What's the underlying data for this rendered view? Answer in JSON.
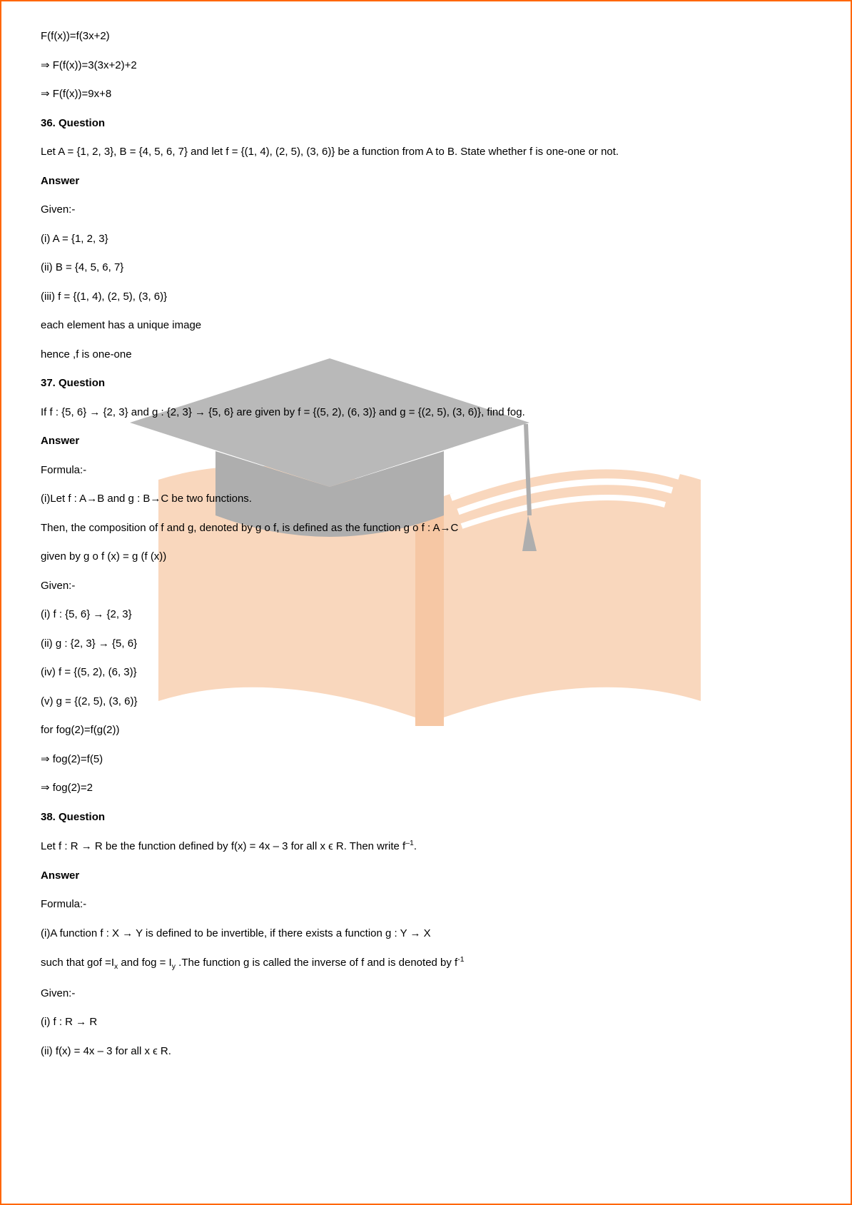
{
  "lines": [
    {
      "text": "F(f(x))=f(3x+2)",
      "bold": false
    },
    {
      "text": "⇒ F(f(x))=3(3x+2)+2",
      "bold": false
    },
    {
      "text": "⇒ F(f(x))=9x+8",
      "bold": false
    },
    {
      "text": "36. Question",
      "bold": true
    },
    {
      "text": "Let A = {1, 2, 3}, B = {4, 5, 6, 7} and let f = {(1, 4), (2, 5), (3, 6)} be a function from A to B. State whether f is one-one or not.",
      "bold": false
    },
    {
      "text": "Answer",
      "bold": true
    },
    {
      "text": "Given:-",
      "bold": false
    },
    {
      "text": "(i) A = {1, 2, 3}",
      "bold": false
    },
    {
      "text": "(ii) B = {4, 5, 6, 7}",
      "bold": false
    },
    {
      "text": "(iii) f = {(1, 4), (2, 5), (3, 6)}",
      "bold": false
    },
    {
      "text": "each element has a unique image",
      "bold": false
    },
    {
      "text": "hence ,f is one-one",
      "bold": false
    },
    {
      "text": "37. Question",
      "bold": true
    },
    {
      "text": "If f : {5, 6} → {2, 3} and g : {2, 3} → {5, 6} are given by f = {(5, 2), (6, 3)} and g = {(2, 5), (3, 6)}, find fog.",
      "bold": false
    },
    {
      "text": "Answer",
      "bold": true
    },
    {
      "text": "Formula:-",
      "bold": false
    },
    {
      "text": "(i)Let f : A→B and g : B→C be two functions.",
      "bold": false
    },
    {
      "text": "Then, the composition of f and g, denoted by g o f, is defined as the function g o f : A→C",
      "bold": false
    },
    {
      "text": "given by g o f (x) = g (f (x))",
      "bold": false
    },
    {
      "text": "Given:-",
      "bold": false
    },
    {
      "text": "(i) f : {5, 6} → {2, 3}",
      "bold": false
    },
    {
      "text": "(ii) g : {2, 3} → {5, 6}",
      "bold": false
    },
    {
      "text": "(iv) f = {(5, 2), (6, 3)}",
      "bold": false
    },
    {
      "text": "(v) g = {(2, 5), (3, 6)}",
      "bold": false
    },
    {
      "text": "for fog(2)=f(g(2))",
      "bold": false
    },
    {
      "text": "⇒ fog(2)=f(5)",
      "bold": false
    },
    {
      "text": "⇒ fog(2)=2",
      "bold": false
    },
    {
      "text": "38. Question",
      "bold": true
    },
    {
      "html": "Let f : R → R be the function defined by f(x) = 4x – 3 for all x ϵ R. Then write f<sup>–1</sup>.",
      "bold": false
    },
    {
      "text": "Answer",
      "bold": true
    },
    {
      "text": "Formula:-",
      "bold": false
    },
    {
      "text": "(i)A function f : X → Y is defined to be invertible, if there exists a function g : Y → X",
      "bold": false
    },
    {
      "html": "such that gof =I<sub>x</sub> and fog = I<sub>y</sub> .The function g is called the inverse of f and is denoted by f<sup>-1</sup>",
      "bold": false
    },
    {
      "text": "Given:-",
      "bold": false
    },
    {
      "text": "(i) f : R → R",
      "bold": false
    },
    {
      "text": "(ii) f(x) = 4x – 3 for all x ϵ R.",
      "bold": false
    }
  ],
  "watermark": {
    "cap_color": "#808080",
    "book_left_color": "#f5b888",
    "book_right_color": "#f5b888",
    "book_spine_color": "#f09a5a",
    "page_color": "#ffffff"
  }
}
